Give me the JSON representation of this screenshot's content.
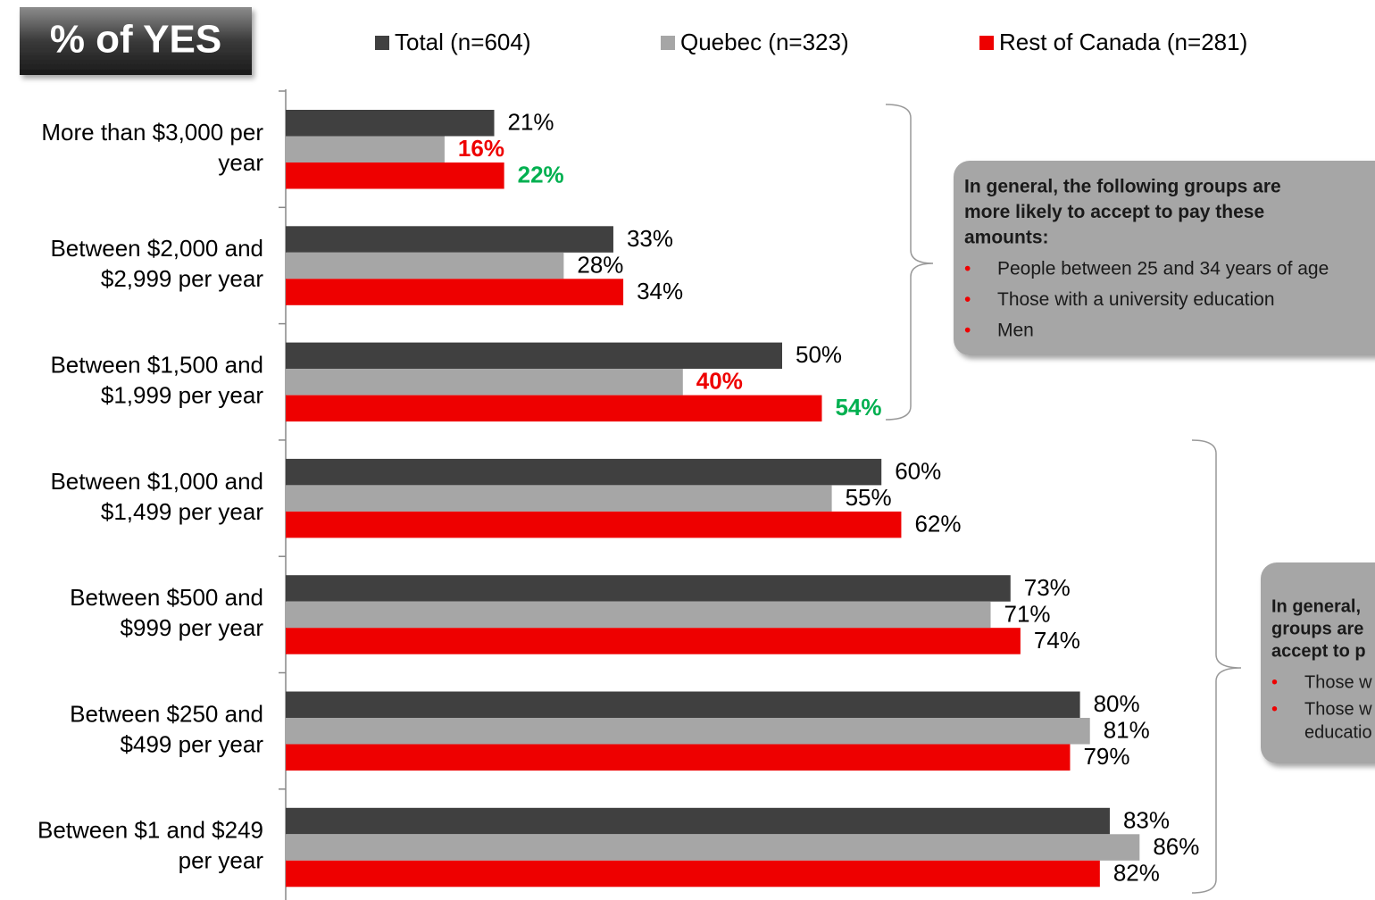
{
  "chart_data": {
    "type": "bar",
    "orientation": "horizontal",
    "title": "% of YES",
    "categories": [
      [
        "More than $3,000 per",
        "year"
      ],
      [
        "Between $2,000 and",
        "$2,999 per year"
      ],
      [
        "Between $1,500 and",
        "$1,999 per year"
      ],
      [
        "Between $1,000 and",
        "$1,499 per year"
      ],
      [
        "Between $500 and",
        "$999 per year"
      ],
      [
        "Between $250 and",
        "$499 per year"
      ],
      [
        "Between $1 and $249",
        "per year"
      ]
    ],
    "series": [
      {
        "name": "Total (n=604)",
        "color": "#404040",
        "values": [
          21,
          33,
          50,
          60,
          73,
          80,
          83
        ],
        "value_labels": [
          "21%",
          "33%",
          "50%",
          "60%",
          "73%",
          "80%",
          "83%"
        ],
        "value_label_colors": [
          "#000000",
          "#000000",
          "#000000",
          "#000000",
          "#000000",
          "#000000",
          "#000000"
        ]
      },
      {
        "name": "Quebec (n=323)",
        "color": "#a6a6a6",
        "values": [
          16,
          28,
          40,
          55,
          71,
          81,
          86
        ],
        "value_labels": [
          "16%",
          "28%",
          "40%",
          "55%",
          "71%",
          "81%",
          "86%"
        ],
        "value_label_colors": [
          "#ee0000",
          "#000000",
          "#ee0000",
          "#000000",
          "#000000",
          "#000000",
          "#000000"
        ]
      },
      {
        "name": "Rest of Canada (n=281)",
        "color": "#ee0000",
        "values": [
          22,
          34,
          54,
          62,
          74,
          79,
          82
        ],
        "value_labels": [
          "22%",
          "34%",
          "54%",
          "62%",
          "74%",
          "79%",
          "82%"
        ],
        "value_label_colors": [
          "#00b050",
          "#000000",
          "#00b050",
          "#000000",
          "#000000",
          "#000000",
          "#000000"
        ]
      }
    ],
    "xlim": [
      0,
      100
    ],
    "annotations": [
      {
        "heading": [
          "In general, the following groups are",
          "more likely to accept to pay these",
          "amounts:"
        ],
        "bullets": [
          [
            "People between 25 and 34 years of age"
          ],
          [
            "Those with a university education"
          ],
          [
            "Men"
          ]
        ]
      },
      {
        "heading": [
          "In general,",
          "groups are",
          "accept to p"
        ],
        "bullets": [
          [
            "Those w"
          ],
          [
            "Those w",
            "educatio"
          ]
        ]
      }
    ]
  }
}
